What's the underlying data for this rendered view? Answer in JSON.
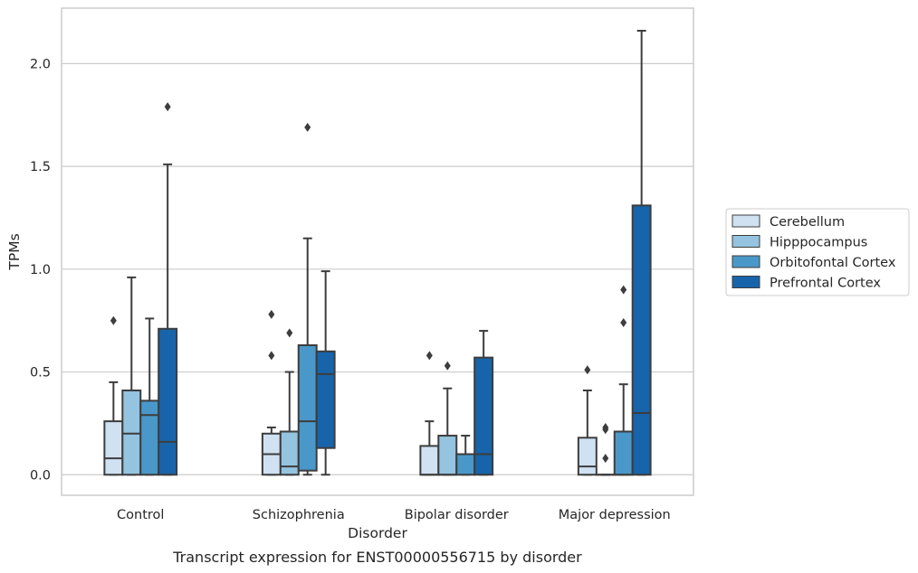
{
  "chart_data": {
    "type": "box",
    "caption": "Transcript expression for ENST00000556715 by disorder",
    "xlabel": "Disorder",
    "ylabel": "TPMs",
    "ylim": [
      -0.1,
      2.27
    ],
    "yticks": [
      0.0,
      0.5,
      1.0,
      1.5,
      2.0
    ],
    "ytick_labels": [
      "0.0",
      "0.5",
      "1.0",
      "1.5",
      "2.0"
    ],
    "grid": "horizontal",
    "legend_position": "right",
    "categories": [
      "Control",
      "Schizophrenia",
      "Bipolar disorder",
      "Major depression"
    ],
    "series": [
      {
        "name": "Cerebellum",
        "color": "#d0e1f2",
        "boxes": [
          {
            "q1": 0.0,
            "median": 0.08,
            "q3": 0.26,
            "whislo": 0.0,
            "whishi": 0.45,
            "fliers": [
              0.75
            ]
          },
          {
            "q1": 0.0,
            "median": 0.1,
            "q3": 0.2,
            "whislo": 0.0,
            "whishi": 0.23,
            "fliers": [
              0.58,
              0.78
            ]
          },
          {
            "q1": 0.0,
            "median": 0.0,
            "q3": 0.14,
            "whislo": 0.0,
            "whishi": 0.26,
            "fliers": [
              0.58
            ]
          },
          {
            "q1": 0.0,
            "median": 0.04,
            "q3": 0.18,
            "whislo": 0.0,
            "whishi": 0.41,
            "fliers": [
              0.51
            ]
          }
        ]
      },
      {
        "name": "Hipppocampus",
        "color": "#94c4df",
        "boxes": [
          {
            "q1": 0.0,
            "median": 0.2,
            "q3": 0.41,
            "whislo": 0.0,
            "whishi": 0.96,
            "fliers": []
          },
          {
            "q1": 0.0,
            "median": 0.04,
            "q3": 0.21,
            "whislo": 0.0,
            "whishi": 0.5,
            "fliers": [
              0.69
            ]
          },
          {
            "q1": 0.0,
            "median": 0.0,
            "q3": 0.19,
            "whislo": 0.0,
            "whishi": 0.42,
            "fliers": [
              0.53
            ]
          },
          {
            "q1": 0.0,
            "median": 0.0,
            "q3": 0.0,
            "whislo": 0.0,
            "whishi": 0.0,
            "fliers": [
              0.08,
              0.22,
              0.23
            ]
          }
        ]
      },
      {
        "name": "Orbitofontal Cortex",
        "color": "#4a98c9",
        "boxes": [
          {
            "q1": 0.0,
            "median": 0.29,
            "q3": 0.36,
            "whislo": 0.0,
            "whishi": 0.76,
            "fliers": []
          },
          {
            "q1": 0.02,
            "median": 0.26,
            "q3": 0.63,
            "whislo": 0.0,
            "whishi": 1.15,
            "fliers": [
              1.69
            ]
          },
          {
            "q1": 0.0,
            "median": 0.1,
            "q3": 0.1,
            "whislo": 0.0,
            "whishi": 0.19,
            "fliers": []
          },
          {
            "q1": 0.0,
            "median": 0.0,
            "q3": 0.21,
            "whislo": 0.0,
            "whishi": 0.44,
            "fliers": [
              0.74,
              0.9
            ]
          }
        ]
      },
      {
        "name": "Prefrontal Cortex",
        "color": "#1764ab",
        "boxes": [
          {
            "q1": 0.0,
            "median": 0.16,
            "q3": 0.71,
            "whislo": 0.0,
            "whishi": 1.51,
            "fliers": [
              1.79
            ]
          },
          {
            "q1": 0.13,
            "median": 0.49,
            "q3": 0.6,
            "whislo": 0.0,
            "whishi": 0.99,
            "fliers": []
          },
          {
            "q1": 0.0,
            "median": 0.1,
            "q3": 0.57,
            "whislo": 0.0,
            "whishi": 0.7,
            "fliers": []
          },
          {
            "q1": 0.0,
            "median": 0.3,
            "q3": 1.31,
            "whislo": 0.0,
            "whishi": 2.16,
            "fliers": []
          }
        ]
      }
    ]
  }
}
